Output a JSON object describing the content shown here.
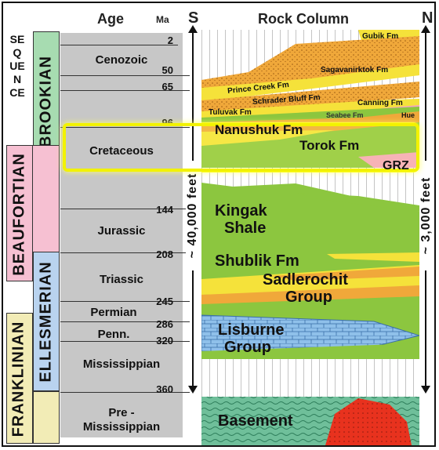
{
  "headers": {
    "age": "Age",
    "ma": "Ma",
    "s": "S",
    "rock_column": "Rock Column",
    "n": "N"
  },
  "sequences": {
    "sequence": "SEQUENCE",
    "brookian": "BROOKIAN",
    "beaufortian": "BEAUFORTIAN",
    "ellesmerian": "ELLESMERIAN",
    "franklinian": "FRANKLINIAN"
  },
  "eras": {
    "cenozoic": "Cenozoic",
    "cretaceous": "Cretaceous",
    "jurassic": "Jurassic",
    "triassic": "Triassic",
    "permian": "Permian",
    "penn": "Penn.",
    "mississippian": "Mississippian",
    "pre1": "Pre -",
    "pre2": "Mississippian"
  },
  "ma": {
    "m2": "2",
    "m50": "50",
    "m65": "65",
    "m96": "96",
    "m144": "144",
    "m208": "208",
    "m245": "245",
    "m286": "286",
    "m320": "320",
    "m360": "360"
  },
  "thickness": {
    "south": "~ 40,000 feet",
    "north": "~ 3,000 feet"
  },
  "formations": {
    "gubik": "Gubik Fm",
    "sagavanirktok": "Sagavanirktok Fm",
    "prince_creek": "Prince Creek Fm",
    "schrader": "Schrader Bluff Fm",
    "canning": "Canning Fm",
    "tuluvak": "Tuluvak Fm",
    "seabee": "Seabee Fm",
    "hue": "Hue",
    "nanushuk": "Nanushuk Fm",
    "torok": "Torok Fm",
    "grz": "GRZ",
    "kingak1": "Kingak",
    "kingak2": "Shale",
    "shublik": "Shublik Fm",
    "sadlerochit1": "Sadlerochit",
    "sadlerochit2": "Group",
    "lisburne1": "Lisburne",
    "lisburne2": "Group",
    "basement": "Basement"
  },
  "colors": {
    "green": "#8cc63f",
    "orange": "#f0a83a",
    "yellow": "#f5e23a",
    "blue": "#8fc0ea",
    "red": "#e8321e",
    "highlight": "#ffff00",
    "gray": "#c7c7c7"
  }
}
